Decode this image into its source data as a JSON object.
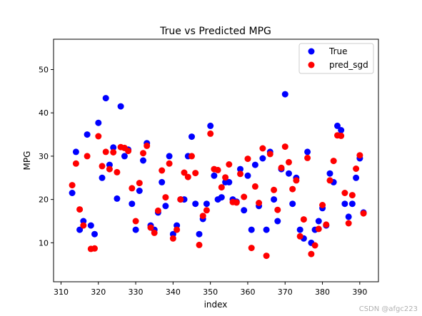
{
  "chart_data": {
    "type": "scatter",
    "title": "True vs Predicted MPG",
    "xlabel": "index",
    "ylabel": "MPG",
    "xlim": [
      308,
      395
    ],
    "ylim": [
      1,
      57
    ],
    "xticks": [
      310,
      320,
      330,
      340,
      350,
      360,
      370,
      380,
      390
    ],
    "yticks": [
      10,
      20,
      30,
      40,
      50
    ],
    "legend_position": "top-right",
    "grid": false,
    "series": [
      {
        "name": "True",
        "color": "#0000ff",
        "x": [
          313,
          314,
          315,
          316,
          317,
          318,
          319,
          320,
          321,
          322,
          323,
          324,
          325,
          326,
          327,
          328,
          329,
          330,
          331,
          332,
          333,
          334,
          335,
          336,
          337,
          338,
          339,
          340,
          341,
          342,
          343,
          344,
          345,
          346,
          347,
          348,
          349,
          350,
          351,
          352,
          353,
          354,
          355,
          356,
          357,
          358,
          359,
          360,
          361,
          362,
          363,
          364,
          365,
          366,
          367,
          368,
          369,
          370,
          371,
          372,
          373,
          374,
          375,
          376,
          377,
          378,
          379,
          380,
          381,
          382,
          383,
          384,
          385,
          386,
          387,
          388,
          389,
          390,
          391
        ],
        "y": [
          21.5,
          31,
          13,
          15,
          35,
          14,
          12,
          37.7,
          25,
          43.4,
          28,
          32,
          20.2,
          41.5,
          30,
          31.5,
          19,
          13,
          22,
          29,
          33,
          14,
          13,
          17,
          24,
          18.5,
          30,
          12,
          14,
          20,
          20,
          30,
          34.5,
          19,
          12,
          15.5,
          19,
          37,
          25.5,
          20,
          20.5,
          24,
          24,
          20,
          19.5,
          27,
          17.5,
          25.5,
          13,
          28,
          18.5,
          29.5,
          13,
          31,
          20,
          15,
          27,
          44.3,
          26,
          19,
          25,
          13,
          11,
          31,
          10,
          13,
          15,
          18,
          14,
          26,
          24,
          37,
          36,
          19,
          16,
          19,
          25,
          29.5,
          17
        ]
      },
      {
        "name": "pred_sgd",
        "color": "#ff0000",
        "x": [
          313,
          314,
          315,
          316,
          317,
          318,
          319,
          320,
          321,
          322,
          323,
          324,
          325,
          326,
          327,
          328,
          329,
          330,
          331,
          332,
          333,
          334,
          335,
          336,
          337,
          338,
          339,
          340,
          341,
          342,
          343,
          344,
          345,
          346,
          347,
          348,
          349,
          350,
          351,
          352,
          353,
          354,
          355,
          356,
          357,
          358,
          359,
          360,
          361,
          362,
          363,
          364,
          365,
          366,
          367,
          368,
          369,
          370,
          371,
          372,
          373,
          374,
          375,
          376,
          377,
          378,
          379,
          380,
          381,
          382,
          383,
          384,
          385,
          386,
          387,
          388,
          389,
          390,
          391
        ],
        "y": [
          23.3,
          28.3,
          17.7,
          14,
          30,
          8.6,
          8.7,
          34.6,
          27.7,
          31,
          27,
          30.9,
          26.3,
          32.1,
          31.9,
          31.2,
          22.6,
          15,
          23.8,
          30.7,
          32.4,
          13.5,
          12.3,
          17.4,
          26.7,
          20.5,
          28.3,
          11,
          13,
          20,
          26.2,
          25.2,
          30,
          26.1,
          9.5,
          16.2,
          17.5,
          35.2,
          27,
          26.8,
          22.8,
          25.1,
          28.1,
          19.4,
          19.3,
          25.9,
          20.6,
          29.4,
          8.8,
          23,
          19.2,
          31.8,
          7,
          30.5,
          22.2,
          17.6,
          27.3,
          32.2,
          28.6,
          22.4,
          24.4,
          11.5,
          15.4,
          29.6,
          7.4,
          9.4,
          13.2,
          18.7,
          14.2,
          24.4,
          28.9,
          34.8,
          34.7,
          21.5,
          14.5,
          21,
          27.1,
          30.2,
          16.8
        ]
      }
    ]
  },
  "watermark": "CSDN @afgc223"
}
